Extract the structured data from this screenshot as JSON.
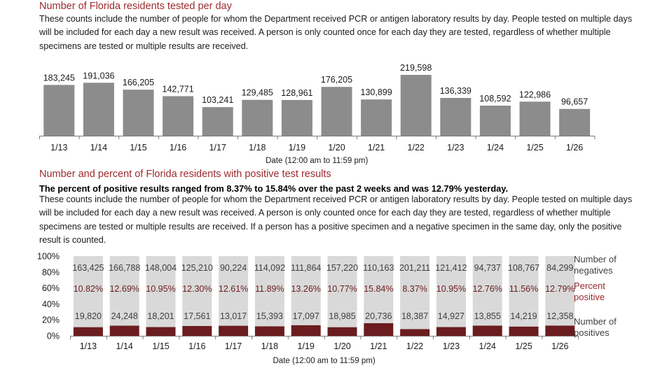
{
  "section1": {
    "title": "Number of Florida residents tested per day",
    "paragraph": "These counts include the number of people for whom the Department received PCR or antigen laboratory results by day. People tested on multiple days will be included for each day a new result was received. A person is only counted once for each day they are tested, regardless of whether multiple specimens are tested or multiple results are received."
  },
  "section2": {
    "title": "Number and percent of Florida residents with positive test results",
    "bold_line": "The percent of positive results ranged from 8.37% to 15.84% over the past 2 weeks and was 12.79% yesterday.",
    "paragraph": "These counts include the number of people for whom the Department received PCR or antigen laboratory results by day. People tested on multiple days will be included for each day a new result was received. A person is only counted once for each day they are tested, regardless of whether multiple specimens are tested or multiple results are received. If a person has a positive specimen and a negative specimen in the same day, only the positive result is counted."
  },
  "colors": {
    "title_red": "#9b2a2e",
    "bar_gray": "#8c8c8c",
    "negative_gray": "#d9d9d9",
    "positive_maroon": "#6b1c1e"
  },
  "chart_data": [
    {
      "type": "bar",
      "xlabel": "Date (12:00 am to 11:59 pm)",
      "categories": [
        "1/13",
        "1/14",
        "1/15",
        "1/16",
        "1/17",
        "1/18",
        "1/19",
        "1/20",
        "1/21",
        "1/22",
        "1/23",
        "1/24",
        "1/25",
        "1/26"
      ],
      "values": [
        183245,
        191036,
        166205,
        142771,
        103241,
        129485,
        128961,
        176205,
        130899,
        219598,
        136339,
        108592,
        122986,
        96657
      ],
      "value_labels": [
        "183,245",
        "191,036",
        "166,205",
        "142,771",
        "103,241",
        "129,485",
        "128,961",
        "176,205",
        "130,899",
        "219,598",
        "136,339",
        "108,592",
        "122,986",
        "96,657"
      ],
      "ylim": [
        0,
        219598
      ],
      "grid": false
    },
    {
      "type": "bar",
      "stacked": "percent",
      "xlabel": "Date (12:00 am to 11:59 pm)",
      "categories": [
        "1/13",
        "1/14",
        "1/15",
        "1/16",
        "1/17",
        "1/18",
        "1/19",
        "1/20",
        "1/21",
        "1/22",
        "1/23",
        "1/24",
        "1/25",
        "1/26"
      ],
      "yticks": [
        "0%",
        "20%",
        "40%",
        "60%",
        "80%",
        "100%"
      ],
      "ylim": [
        0,
        100
      ],
      "series": [
        {
          "name": "Number of negatives",
          "values": [
            163425,
            166788,
            148004,
            125210,
            90224,
            114092,
            111864,
            157220,
            110163,
            201211,
            121412,
            94737,
            108767,
            84299
          ],
          "labels": [
            "163,425",
            "166,788",
            "148,004",
            "125,210",
            "90,224",
            "114,092",
            "111,864",
            "157,220",
            "110,163",
            "201,211",
            "121,412",
            "94,737",
            "108,767",
            "84,299"
          ]
        },
        {
          "name": "Percent positive",
          "values": [
            10.82,
            12.69,
            10.95,
            12.3,
            12.61,
            11.89,
            13.26,
            10.77,
            15.84,
            8.37,
            10.95,
            12.76,
            11.56,
            12.79
          ],
          "labels": [
            "10.82%",
            "12.69%",
            "10.95%",
            "12.30%",
            "12.61%",
            "11.89%",
            "13.26%",
            "10.77%",
            "15.84%",
            "8.37%",
            "10.95%",
            "12.76%",
            "11.56%",
            "12.79%"
          ]
        },
        {
          "name": "Number of positives",
          "values": [
            19820,
            24248,
            18201,
            17561,
            13017,
            15393,
            17097,
            18985,
            20736,
            18387,
            14927,
            13855,
            14219,
            12358
          ],
          "labels": [
            "19,820",
            "24,248",
            "18,201",
            "17,561",
            "13,017",
            "15,393",
            "17,097",
            "18,985",
            "20,736",
            "18,387",
            "14,927",
            "13,855",
            "14,219",
            "12,358"
          ]
        }
      ],
      "legend": {
        "position": "right",
        "negatives": [
          "Number of",
          "negatives"
        ],
        "percent": [
          "Percent",
          "positive"
        ],
        "positives": [
          "Number of",
          "positives"
        ]
      }
    }
  ]
}
